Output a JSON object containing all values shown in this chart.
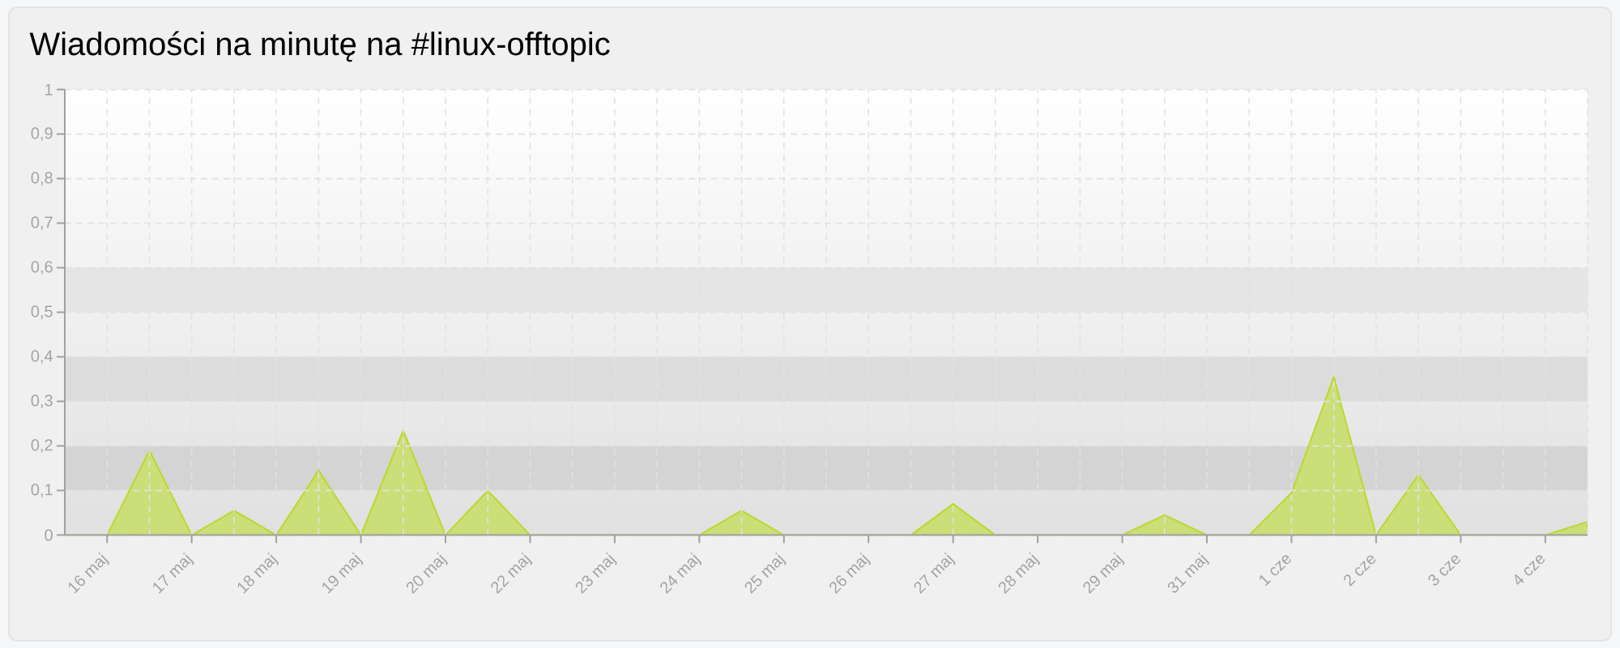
{
  "chart_data": {
    "type": "area",
    "title": "Wiadomości na minutę na #linux-offtopic",
    "categories": [
      null,
      "16 maj",
      null,
      "17 maj",
      null,
      "18 maj",
      null,
      "19 maj",
      null,
      "20 maj",
      null,
      "22 maj",
      null,
      "23 maj",
      null,
      "24 maj",
      null,
      "25 maj",
      null,
      "26 maj",
      null,
      "27 maj",
      null,
      "28 maj",
      null,
      "29 maj",
      null,
      "31 maj",
      null,
      "1 cze",
      null,
      "2 cze",
      null,
      "3 cze",
      null,
      "4 cze",
      null
    ],
    "series": [
      {
        "color": "#b9d92e",
        "values": [
          0,
          0,
          0.19,
          0,
          0.055,
          0,
          0.145,
          0,
          0.235,
          0,
          0.1,
          0,
          0,
          0,
          0,
          0,
          0.055,
          0,
          0,
          0,
          0,
          0.07,
          0,
          0,
          0,
          0,
          0.045,
          0,
          0,
          0.095,
          0.355,
          0,
          0.135,
          0,
          0,
          0,
          0.03
        ]
      }
    ],
    "ylim": [
      0,
      1
    ],
    "yticks": [
      0,
      {
        "value": 0.1,
        "label": "0,1"
      },
      {
        "value": 0.2,
        "label": "0,2"
      },
      {
        "value": 0.3,
        "label": "0,3"
      },
      {
        "value": 0.4,
        "label": "0,4"
      },
      {
        "value": 0.5,
        "label": "0,5"
      },
      {
        "value": 0.6,
        "label": "0,6"
      },
      {
        "value": 0.7,
        "label": "0,7"
      },
      {
        "value": 0.8,
        "label": "0,8"
      },
      {
        "value": 0.9,
        "label": "0,9"
      },
      1
    ],
    "grid": true,
    "bands": [
      {
        "axis": "y",
        "from": 0.1,
        "to": 0.2,
        "color": "#d4d4d4"
      },
      {
        "axis": "y",
        "from": 0.3,
        "to": 0.4,
        "color": "#dcdcdc"
      },
      {
        "axis": "y",
        "from": 0.5,
        "to": 0.6,
        "color": "#e5e5e5"
      }
    ]
  }
}
